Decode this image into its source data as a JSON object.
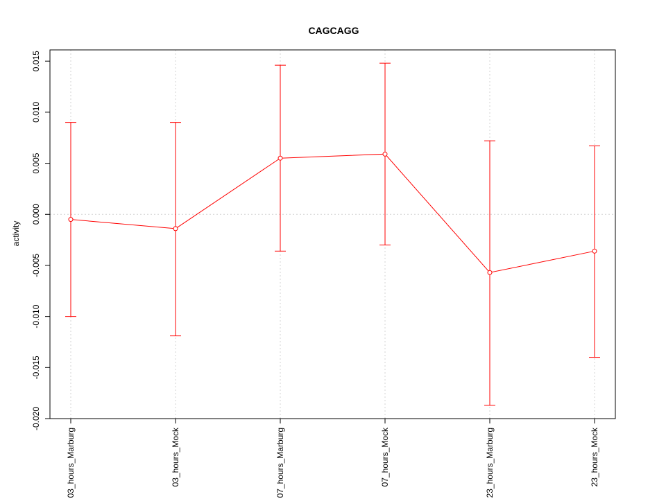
{
  "chart_data": {
    "type": "line",
    "title": "CAGCAGG",
    "xlabel": "",
    "ylabel": "activity",
    "categories": [
      "03_hours_Marburg",
      "03_hours_Mock",
      "07_hours_Marburg",
      "07_hours_Mock",
      "23_hours_Marburg",
      "23_hours_Mock"
    ],
    "series": [
      {
        "values": [
          -0.0005,
          -0.0014,
          0.0055,
          0.0059,
          -0.0057,
          -0.0036
        ],
        "upper": [
          0.009,
          0.009,
          0.0146,
          0.0148,
          0.0072,
          0.0067
        ],
        "lower": [
          -0.01,
          -0.0119,
          -0.0036,
          -0.003,
          -0.0187,
          -0.014
        ]
      }
    ],
    "yticks": [
      -0.02,
      -0.015,
      -0.01,
      -0.005,
      0.0,
      0.005,
      0.01,
      0.015
    ],
    "ytick_labels": [
      "-0.020",
      "-0.015",
      "-0.010",
      "-0.005",
      "0.000",
      "0.005",
      "0.010",
      "0.015"
    ],
    "ylim": [
      -0.02,
      0.0161
    ],
    "grid": true,
    "color": "#ff0000"
  }
}
